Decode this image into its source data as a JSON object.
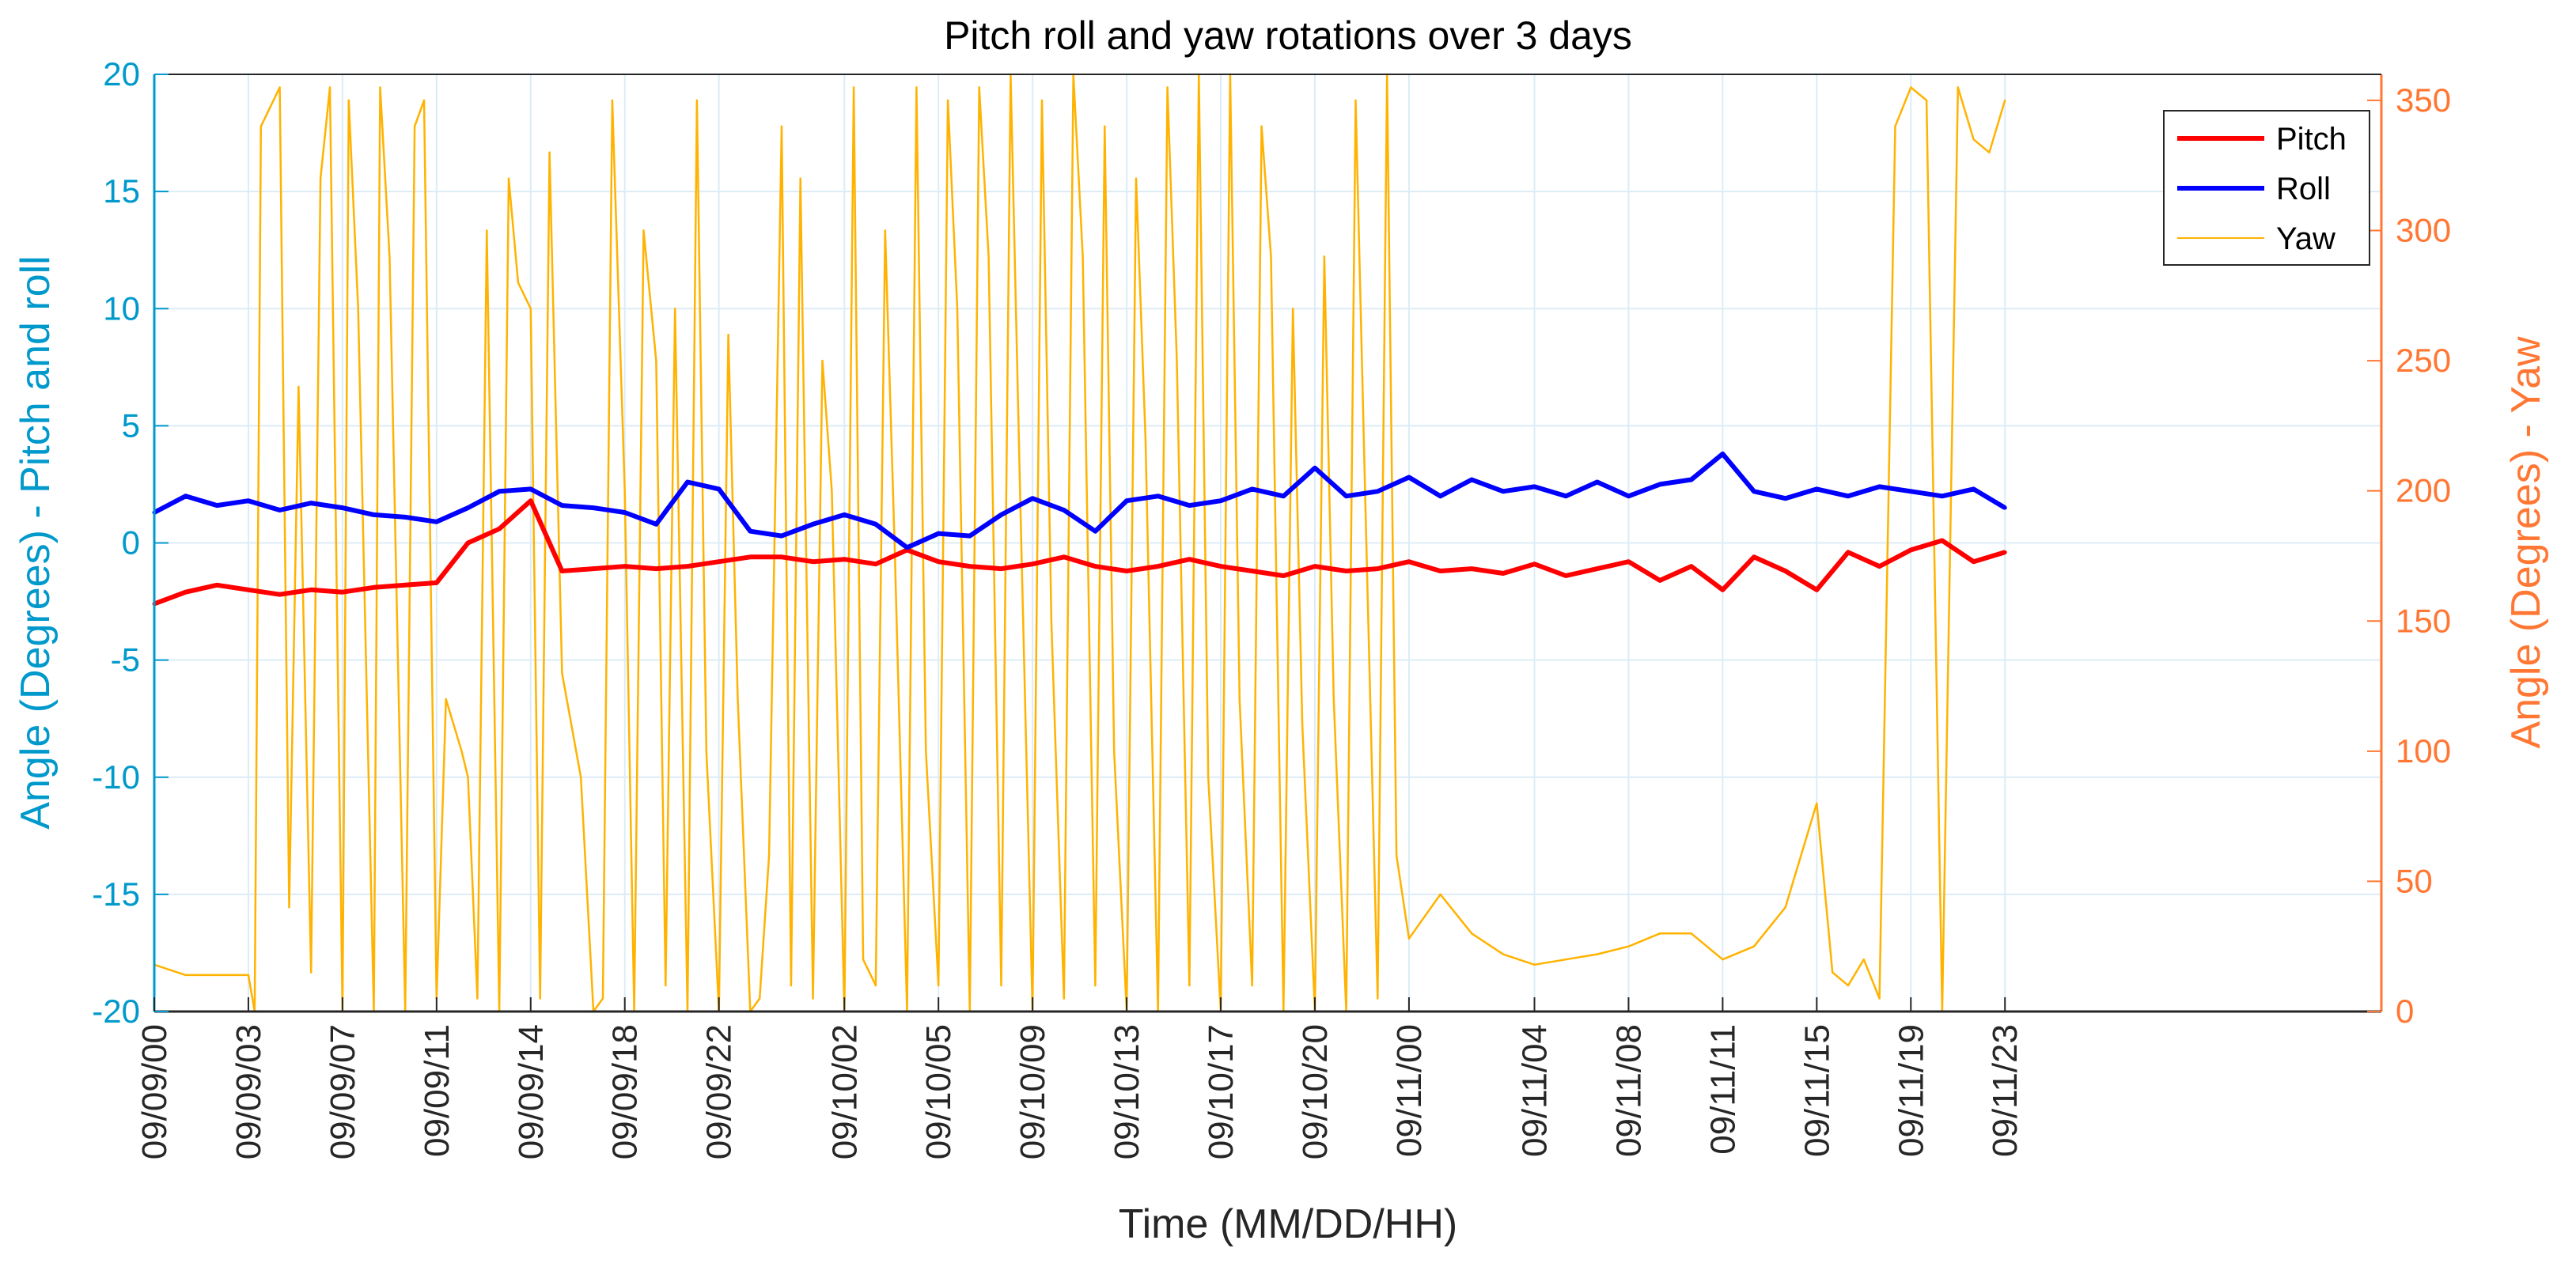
{
  "chart_data": {
    "type": "line",
    "title": "Pitch roll and yaw rotations over 3 days",
    "xlabel": "Time (MM/DD/HH)",
    "ylabel_left": "Angle (Degrees) - Pitch and roll",
    "ylabel_right": "Angle (Degrees) - Yaw",
    "ylim_left": [
      -20,
      20
    ],
    "ylim_right": [
      0,
      360
    ],
    "yticks_left": [
      -20,
      -15,
      -10,
      -5,
      0,
      5,
      10,
      15,
      20
    ],
    "yticks_right": [
      0,
      50,
      100,
      150,
      200,
      250,
      300,
      350
    ],
    "grid": true,
    "legend_position": "top-right",
    "x_hours": [
      0,
      71
    ],
    "x_ticks": [
      {
        "h": 0,
        "label": "09/09/00"
      },
      {
        "h": 3,
        "label": "09/09/03"
      },
      {
        "h": 6,
        "label": "09/09/07"
      },
      {
        "h": 9,
        "label": "09/09/11"
      },
      {
        "h": 12,
        "label": "09/09/14"
      },
      {
        "h": 15,
        "label": "09/09/18"
      },
      {
        "h": 18,
        "label": "09/09/22"
      },
      {
        "h": 22,
        "label": "09/10/02"
      },
      {
        "h": 25,
        "label": "09/10/05"
      },
      {
        "h": 28,
        "label": "09/10/09"
      },
      {
        "h": 31,
        "label": "09/10/13"
      },
      {
        "h": 34,
        "label": "09/10/17"
      },
      {
        "h": 37,
        "label": "09/10/20"
      },
      {
        "h": 40,
        "label": "09/11/00"
      },
      {
        "h": 44,
        "label": "09/11/04"
      },
      {
        "h": 47,
        "label": "09/11/08"
      },
      {
        "h": 50,
        "label": "09/11/11"
      },
      {
        "h": 53,
        "label": "09/11/15"
      },
      {
        "h": 56,
        "label": "09/11/19"
      },
      {
        "h": 59,
        "label": "09/11/23"
      }
    ],
    "series": [
      {
        "name": "Pitch",
        "color": "#ff0000",
        "axis": "left",
        "x": [
          0,
          1,
          2,
          3,
          4,
          5,
          6,
          7,
          8,
          9,
          10,
          11,
          12,
          13,
          14,
          15,
          16,
          17,
          18,
          19,
          20,
          21,
          22,
          23,
          24,
          25,
          26,
          27,
          28,
          29,
          30,
          31,
          32,
          33,
          34,
          35,
          36,
          37,
          38,
          39,
          40,
          41,
          42,
          43,
          44,
          45,
          46,
          47,
          48,
          49,
          50,
          51,
          52,
          53,
          54,
          55,
          56,
          57,
          58,
          59
        ],
        "values": [
          -2.6,
          -2.1,
          -1.8,
          -2.0,
          -2.2,
          -2.0,
          -2.1,
          -1.9,
          -1.8,
          -1.7,
          0.0,
          0.6,
          1.8,
          -1.2,
          -1.1,
          -1.0,
          -1.1,
          -1.0,
          -0.8,
          -0.6,
          -0.6,
          -0.8,
          -0.7,
          -0.9,
          -0.3,
          -0.8,
          -1.0,
          -1.1,
          -0.9,
          -0.6,
          -1.0,
          -1.2,
          -1.0,
          -0.7,
          -1.0,
          -1.2,
          -1.4,
          -1.0,
          -1.2,
          -1.1,
          -0.8,
          -1.2,
          -1.1,
          -1.3,
          -0.9,
          -1.4,
          -1.1,
          -0.8,
          -1.6,
          -1.0,
          -2.0,
          -0.6,
          -1.2,
          -2.0,
          -0.4,
          -1.0,
          -0.3,
          0.1,
          -0.8,
          -0.4
        ]
      },
      {
        "name": "Roll",
        "color": "#0000ff",
        "axis": "left",
        "x": [
          0,
          1,
          2,
          3,
          4,
          5,
          6,
          7,
          8,
          9,
          10,
          11,
          12,
          13,
          14,
          15,
          16,
          17,
          18,
          19,
          20,
          21,
          22,
          23,
          24,
          25,
          26,
          27,
          28,
          29,
          30,
          31,
          32,
          33,
          34,
          35,
          36,
          37,
          38,
          39,
          40,
          41,
          42,
          43,
          44,
          45,
          46,
          47,
          48,
          49,
          50,
          51,
          52,
          53,
          54,
          55,
          56,
          57,
          58,
          59
        ],
        "values": [
          1.3,
          2.0,
          1.6,
          1.8,
          1.4,
          1.7,
          1.5,
          1.2,
          1.1,
          0.9,
          1.5,
          2.2,
          2.3,
          1.6,
          1.5,
          1.3,
          0.8,
          2.6,
          2.3,
          0.5,
          0.3,
          0.8,
          1.2,
          0.8,
          -0.2,
          0.4,
          0.3,
          1.2,
          1.9,
          1.4,
          0.5,
          1.8,
          2.0,
          1.6,
          1.8,
          2.3,
          2.0,
          3.2,
          2.0,
          2.2,
          2.8,
          2.0,
          2.7,
          2.2,
          2.4,
          2.0,
          2.6,
          2.0,
          2.5,
          2.7,
          3.8,
          2.2,
          1.9,
          2.3,
          2.0,
          2.4,
          2.2,
          2.0,
          2.3,
          1.5
        ]
      },
      {
        "name": "Yaw",
        "color": "#ffb300",
        "axis": "right",
        "x": [
          0,
          1,
          2,
          3,
          3.2,
          3.4,
          4.0,
          4.3,
          4.6,
          5.0,
          5.3,
          5.6,
          6.0,
          6.2,
          6.5,
          7.0,
          7.2,
          7.5,
          8.0,
          8.3,
          8.6,
          9.0,
          9.3,
          9.8,
          10.0,
          10.3,
          10.6,
          11.0,
          11.3,
          11.6,
          12.0,
          12.3,
          12.6,
          13.0,
          13.3,
          13.6,
          14.0,
          14.3,
          14.6,
          15.0,
          15.3,
          15.6,
          16.0,
          16.3,
          16.6,
          17.0,
          17.3,
          17.6,
          18.0,
          18.3,
          18.6,
          19.0,
          19.3,
          19.6,
          20.0,
          20.3,
          20.6,
          21.0,
          21.3,
          21.6,
          22.0,
          22.3,
          22.6,
          23.0,
          23.3,
          23.6,
          24.0,
          24.3,
          24.6,
          25.0,
          25.3,
          25.6,
          26.0,
          26.3,
          26.6,
          27.0,
          27.3,
          27.6,
          28.0,
          28.3,
          28.6,
          29.0,
          29.3,
          29.6,
          30.0,
          30.3,
          30.6,
          31.0,
          31.3,
          31.6,
          32.0,
          32.3,
          32.6,
          33.0,
          33.3,
          33.6,
          34.0,
          34.3,
          34.6,
          35.0,
          35.3,
          35.6,
          36.0,
          36.3,
          36.6,
          37.0,
          37.3,
          37.6,
          38.0,
          38.3,
          38.6,
          39.0,
          39.3,
          39.6,
          40.0,
          41.0,
          42.0,
          43.0,
          44.0,
          45.0,
          46.0,
          47.0,
          48.0,
          49.0,
          50.0,
          51.0,
          52.0,
          53.0,
          53.5,
          54.0,
          54.5,
          55.0,
          55.5,
          56.0,
          56.5,
          57.0,
          57.5,
          58.0,
          58.5,
          59.0
        ],
        "values": [
          18,
          14,
          14,
          14,
          0,
          340,
          355,
          40,
          240,
          15,
          320,
          355,
          0,
          350,
          270,
          0,
          355,
          290,
          0,
          340,
          350,
          5,
          120,
          100,
          90,
          5,
          300,
          0,
          320,
          280,
          270,
          5,
          330,
          130,
          110,
          90,
          0,
          5,
          350,
          200,
          0,
          300,
          250,
          10,
          270,
          0,
          350,
          100,
          0,
          260,
          120,
          0,
          5,
          60,
          340,
          10,
          320,
          5,
          250,
          200,
          0,
          355,
          20,
          10,
          300,
          180,
          0,
          355,
          100,
          10,
          350,
          270,
          0,
          355,
          290,
          10,
          360,
          200,
          0,
          350,
          150,
          5,
          360,
          290,
          10,
          340,
          100,
          0,
          320,
          220,
          0,
          355,
          250,
          10,
          360,
          90,
          0,
          360,
          120,
          10,
          340,
          290,
          0,
          270,
          110,
          0,
          290,
          120,
          0,
          350,
          200,
          5,
          360,
          60,
          28,
          45,
          30,
          22,
          18,
          20,
          22,
          25,
          30,
          30,
          20,
          25,
          40,
          80,
          15,
          10,
          20,
          5,
          340,
          355,
          350,
          0,
          355,
          335,
          330,
          350
        ]
      }
    ]
  }
}
